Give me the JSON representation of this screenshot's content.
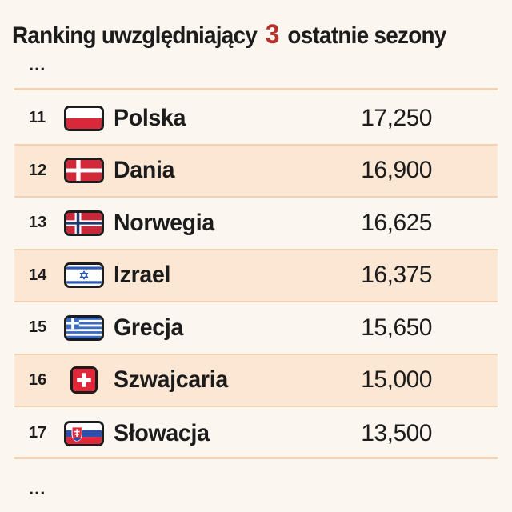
{
  "header": {
    "title_before": "Ranking uwzględniający",
    "title_number": "3",
    "title_after": "ostatnie sezony"
  },
  "ellipsis_top": "...",
  "ellipsis_bottom": "...",
  "accent_color": "#b8322c",
  "ranking": [
    {
      "rank": "11",
      "country": "Polska",
      "points": "17,250",
      "flag": "poland-flag-icon"
    },
    {
      "rank": "12",
      "country": "Dania",
      "points": "16,900",
      "flag": "denmark-flag-icon"
    },
    {
      "rank": "13",
      "country": "Norwegia",
      "points": "16,625",
      "flag": "norway-flag-icon"
    },
    {
      "rank": "14",
      "country": "Izrael",
      "points": "16,375",
      "flag": "israel-flag-icon"
    },
    {
      "rank": "15",
      "country": "Grecja",
      "points": "15,650",
      "flag": "greece-flag-icon"
    },
    {
      "rank": "16",
      "country": "Szwajcaria",
      "points": "15,000",
      "flag": "switzerland-flag-icon"
    },
    {
      "rank": "17",
      "country": "Słowacja",
      "points": "13,500",
      "flag": "slovakia-flag-icon"
    }
  ]
}
